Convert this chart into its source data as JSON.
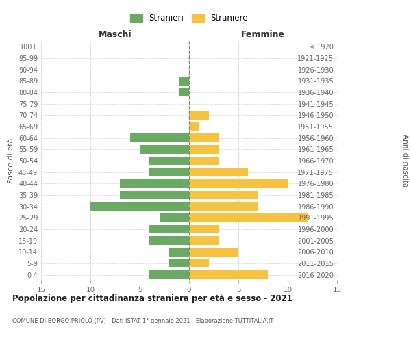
{
  "age_groups": [
    "100+",
    "95-99",
    "90-94",
    "85-89",
    "80-84",
    "75-79",
    "70-74",
    "65-69",
    "60-64",
    "55-59",
    "50-54",
    "45-49",
    "40-44",
    "35-39",
    "30-34",
    "25-29",
    "20-24",
    "15-19",
    "10-14",
    "5-9",
    "0-4"
  ],
  "birth_years": [
    "≤ 1920",
    "1921-1925",
    "1926-1930",
    "1931-1935",
    "1936-1940",
    "1941-1945",
    "1946-1950",
    "1951-1955",
    "1956-1960",
    "1961-1965",
    "1966-1970",
    "1971-1975",
    "1976-1980",
    "1981-1985",
    "1986-1990",
    "1991-1995",
    "1996-2000",
    "2001-2005",
    "2006-2010",
    "2011-2015",
    "2016-2020"
  ],
  "males": [
    0,
    0,
    0,
    1,
    1,
    0,
    0,
    0,
    6,
    5,
    4,
    4,
    7,
    7,
    10,
    3,
    4,
    4,
    2,
    2,
    4
  ],
  "females": [
    0,
    0,
    0,
    0,
    0,
    0,
    2,
    1,
    3,
    3,
    3,
    6,
    10,
    7,
    7,
    12,
    3,
    3,
    5,
    2,
    8
  ],
  "male_color": "#6aaa64",
  "female_color": "#f5c242",
  "male_label": "Stranieri",
  "female_label": "Straniere",
  "title": "Popolazione per cittadinanza straniera per età e sesso - 2021",
  "subtitle": "COMUNE DI BORGO PRIOLO (PV) - Dati ISTAT 1° gennaio 2021 - Elaborazione TUTTITALIA.IT",
  "ylabel_left": "Fasce di età",
  "ylabel_right": "Anni di nascita",
  "xlabel_left": "Maschi",
  "xlabel_top_right": "Femmine",
  "xlim": 15,
  "background_color": "#ffffff",
  "grid_color": "#cccccc",
  "bar_height": 0.75
}
